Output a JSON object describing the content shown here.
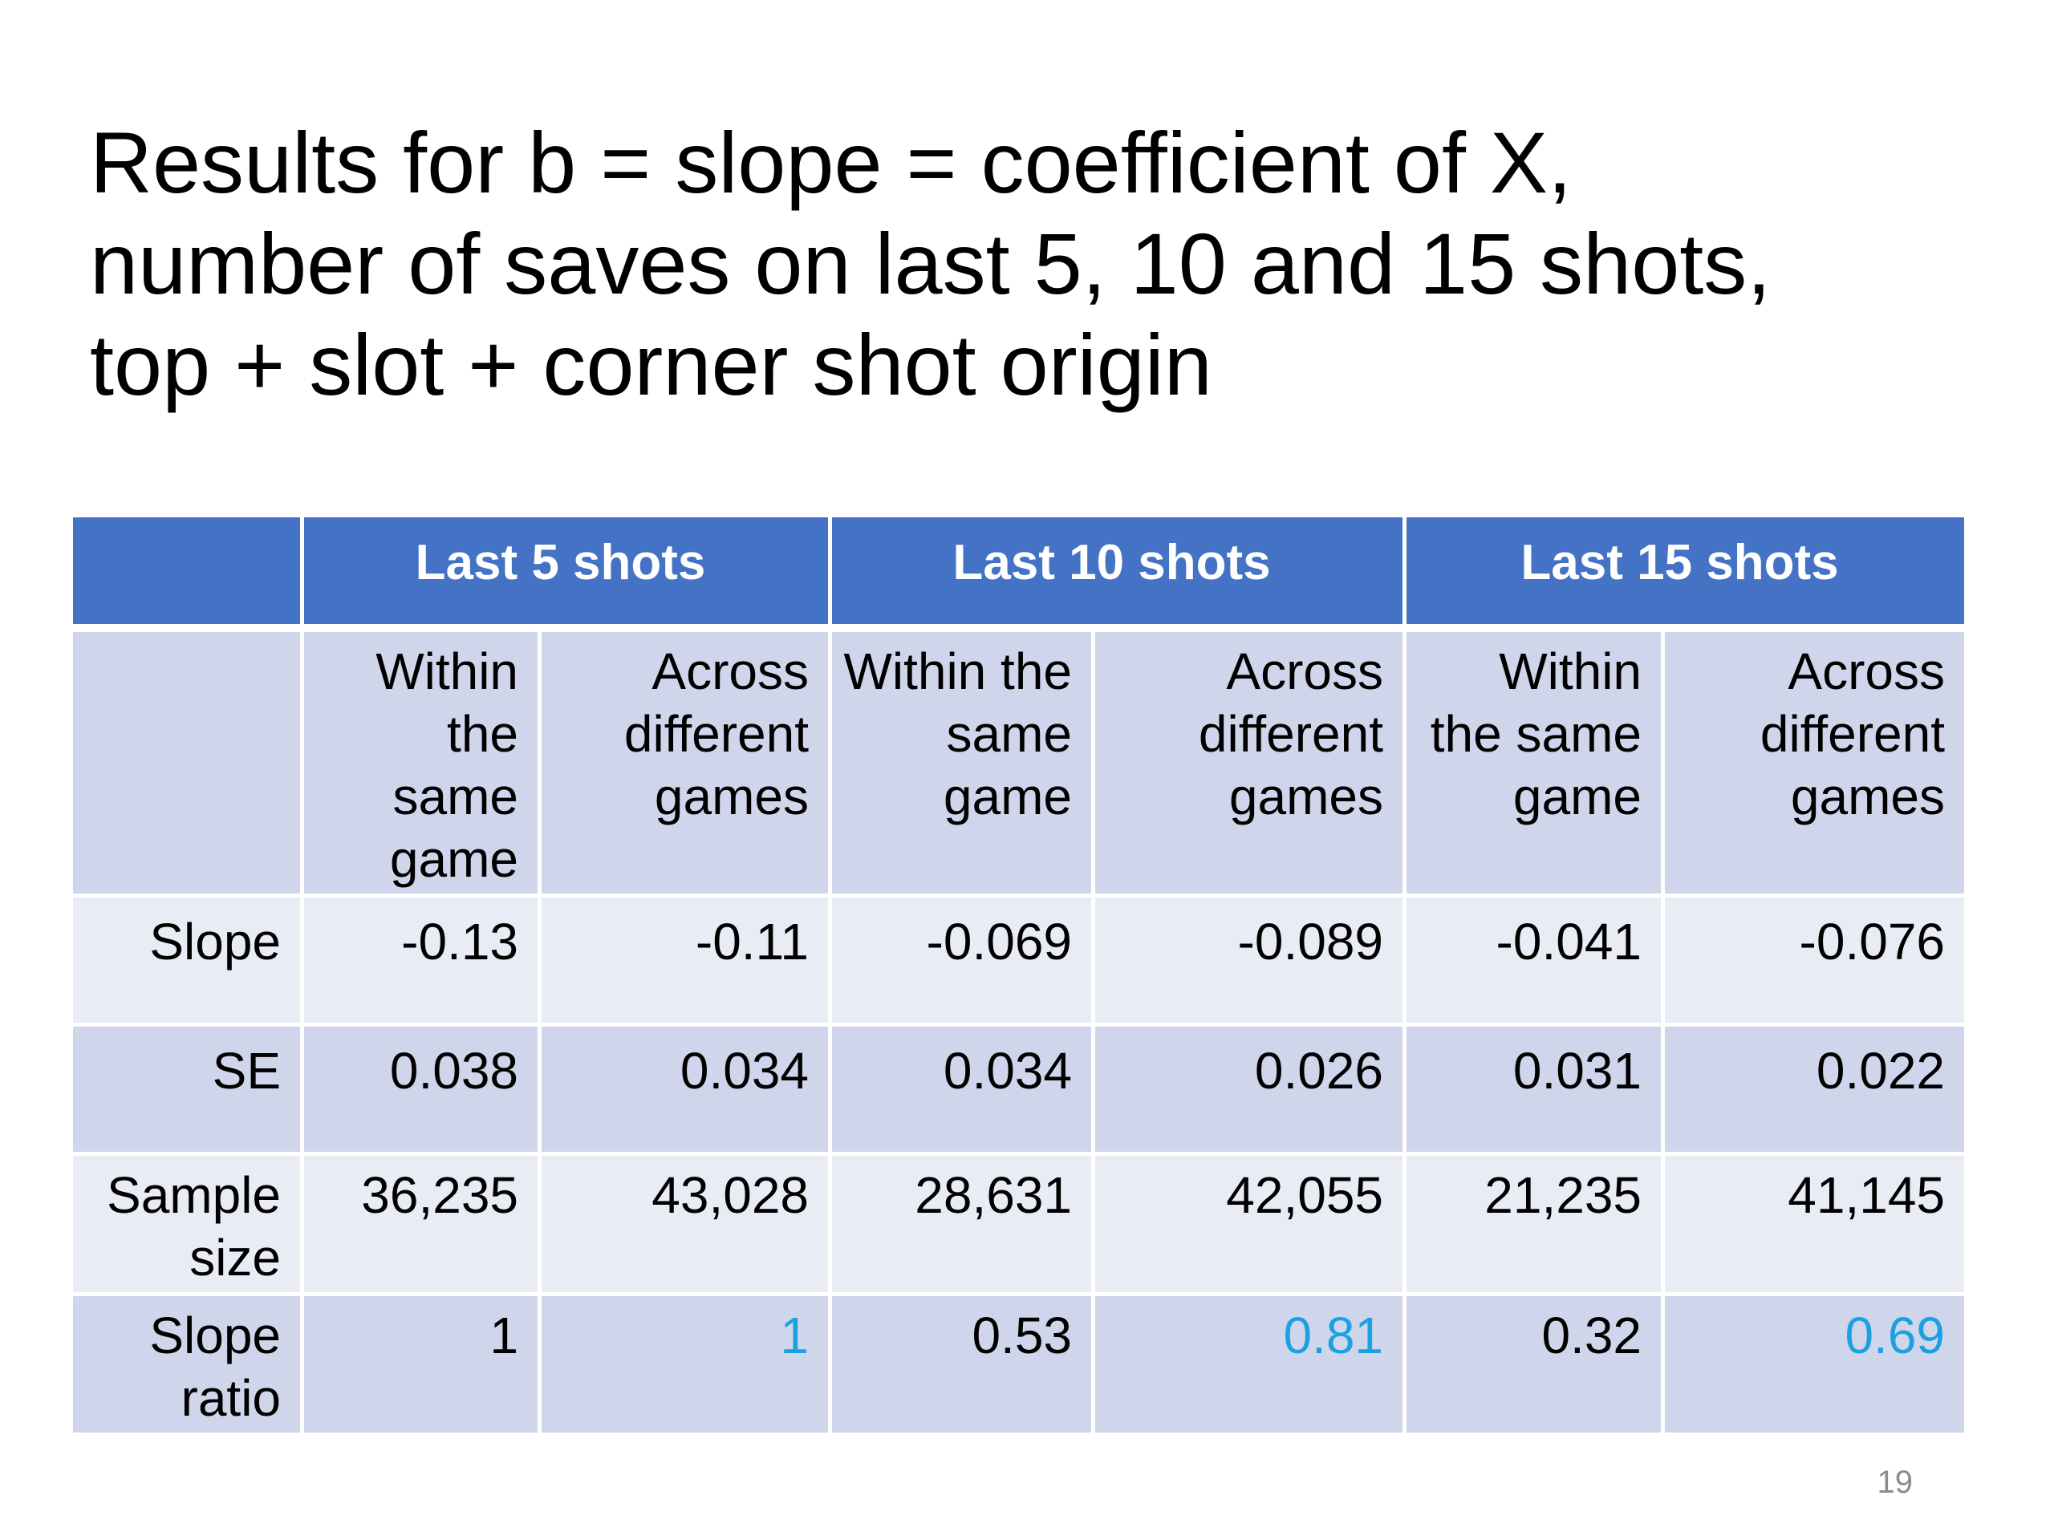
{
  "slide": {
    "title_lines": [
      "Results for b = slope = coefficient of X,",
      "number of saves on last 5, 10 and 15 shots,",
      "top + slot + corner shot origin"
    ],
    "page_number": "19"
  },
  "table": {
    "group_headers": [
      "",
      "Last 5 shots",
      "Last 10 shots",
      "Last 15 shots"
    ],
    "sub_headers": [
      "",
      "Within the same game",
      "Across different games",
      "Within the same game",
      "Across different games",
      "Within the same game",
      "Across different games"
    ],
    "rows": [
      {
        "label": "Slope",
        "values": [
          "-0.13",
          "-0.11",
          "-0.069",
          "-0.089",
          "-0.041",
          "-0.076"
        ]
      },
      {
        "label": "SE",
        "values": [
          "0.038",
          "0.034",
          "0.034",
          "0.026",
          "0.031",
          "0.022"
        ]
      },
      {
        "label": "Sample size",
        "values": [
          "36,235",
          "43,028",
          "28,631",
          "42,055",
          "21,235",
          "41,145"
        ]
      },
      {
        "label": "Slope ratio",
        "values": [
          "1",
          "1",
          "0.53",
          "0.81",
          "0.32",
          "0.69"
        ]
      }
    ],
    "highlight_color": "#1ba1e2",
    "header_color": "#4472c4"
  }
}
